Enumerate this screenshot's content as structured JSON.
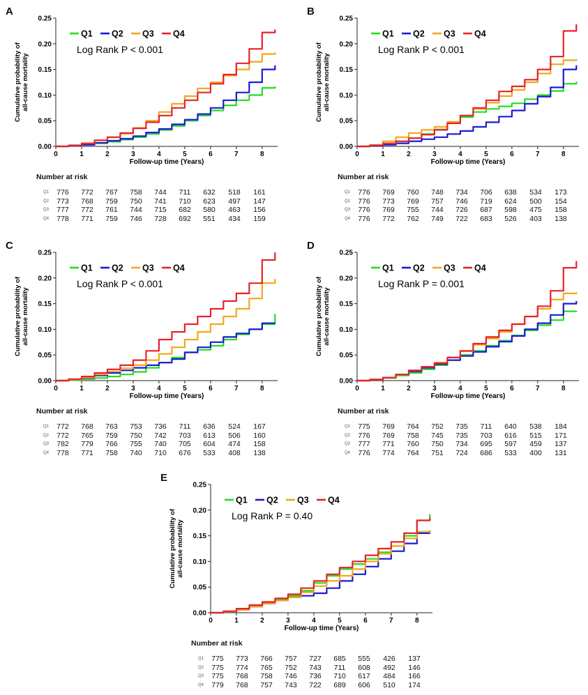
{
  "colors": {
    "Q1": "#22dd22",
    "Q2": "#1a1ad6",
    "Q3": "#f2a71b",
    "Q4": "#e8222a"
  },
  "shared": {
    "xlabel": "Follow-up time (Years)",
    "ylabel_line1": "Cumulative probability of",
    "ylabel_line2": "all-cause mortality",
    "risk_title": "Number at risk",
    "groups": [
      "Q1",
      "Q2",
      "Q3",
      "Q4"
    ]
  },
  "chart_data": [
    {
      "panel": "A",
      "type": "line",
      "logrank": "Log Rank P < 0.001",
      "xlim": [
        0,
        8.6
      ],
      "ylim": [
        0,
        0.25
      ],
      "xticks": [
        0,
        1,
        2,
        3,
        4,
        5,
        6,
        7,
        8
      ],
      "yticks": [
        0,
        0.05,
        0.1,
        0.15,
        0.2,
        0.25
      ],
      "ytick_labels": [
        "0.00",
        "0.05",
        "0.10",
        "0.15",
        "0.20",
        "0.25"
      ],
      "x": [
        0,
        0.5,
        1,
        1.5,
        2,
        2.5,
        3,
        3.5,
        4,
        4.5,
        5,
        5.5,
        6,
        6.5,
        7,
        7.5,
        8,
        8.5
      ],
      "series": [
        {
          "name": "Q1",
          "values": [
            0,
            0.001,
            0.003,
            0.006,
            0.009,
            0.013,
            0.018,
            0.024,
            0.032,
            0.04,
            0.05,
            0.06,
            0.07,
            0.08,
            0.09,
            0.1,
            0.114,
            0.117
          ]
        },
        {
          "name": "Q2",
          "values": [
            0,
            0.001,
            0.003,
            0.007,
            0.011,
            0.015,
            0.02,
            0.027,
            0.034,
            0.043,
            0.052,
            0.063,
            0.075,
            0.09,
            0.105,
            0.125,
            0.15,
            0.158
          ]
        },
        {
          "name": "Q3",
          "values": [
            0,
            0.002,
            0.006,
            0.012,
            0.018,
            0.025,
            0.036,
            0.05,
            0.067,
            0.083,
            0.098,
            0.113,
            0.125,
            0.138,
            0.15,
            0.165,
            0.18,
            0.183
          ]
        },
        {
          "name": "Q4",
          "values": [
            0,
            0.002,
            0.006,
            0.012,
            0.018,
            0.026,
            0.035,
            0.047,
            0.06,
            0.075,
            0.09,
            0.105,
            0.122,
            0.14,
            0.162,
            0.19,
            0.222,
            0.228
          ]
        }
      ],
      "risk": [
        [
          "776",
          "772",
          "767",
          "758",
          "744",
          "711",
          "632",
          "518",
          "161"
        ],
        [
          "773",
          "768",
          "759",
          "750",
          "741",
          "710",
          "623",
          "497",
          "147"
        ],
        [
          "777",
          "772",
          "761",
          "744",
          "715",
          "682",
          "580",
          "463",
          "156"
        ],
        [
          "778",
          "771",
          "759",
          "746",
          "728",
          "692",
          "551",
          "434",
          "159"
        ]
      ]
    },
    {
      "panel": "B",
      "type": "line",
      "logrank": "Log Rank P < 0.001",
      "xlim": [
        0,
        8.6
      ],
      "ylim": [
        0,
        0.25
      ],
      "xticks": [
        0,
        1,
        2,
        3,
        4,
        5,
        6,
        7,
        8
      ],
      "yticks": [
        0,
        0.05,
        0.1,
        0.15,
        0.2,
        0.25
      ],
      "ytick_labels": [
        "0.00",
        "0.05",
        "0.10",
        "0.15",
        "0.20",
        "0.25"
      ],
      "x": [
        0,
        0.5,
        1,
        1.5,
        2,
        2.5,
        3,
        3.5,
        4,
        4.5,
        5,
        5.5,
        6,
        6.5,
        7,
        7.5,
        8,
        8.5
      ],
      "series": [
        {
          "name": "Q1",
          "values": [
            0,
            0.002,
            0.005,
            0.01,
            0.016,
            0.024,
            0.033,
            0.045,
            0.057,
            0.067,
            0.073,
            0.078,
            0.084,
            0.092,
            0.1,
            0.108,
            0.122,
            0.126
          ]
        },
        {
          "name": "Q2",
          "values": [
            0,
            0.001,
            0.003,
            0.006,
            0.01,
            0.014,
            0.018,
            0.024,
            0.03,
            0.038,
            0.047,
            0.058,
            0.07,
            0.083,
            0.097,
            0.115,
            0.15,
            0.158
          ]
        },
        {
          "name": "Q3",
          "values": [
            0,
            0.003,
            0.01,
            0.018,
            0.026,
            0.032,
            0.038,
            0.048,
            0.06,
            0.073,
            0.085,
            0.098,
            0.11,
            0.125,
            0.142,
            0.16,
            0.168,
            0.17
          ]
        },
        {
          "name": "Q4",
          "values": [
            0,
            0.002,
            0.006,
            0.01,
            0.016,
            0.023,
            0.032,
            0.045,
            0.06,
            0.075,
            0.09,
            0.107,
            0.117,
            0.13,
            0.15,
            0.175,
            0.225,
            0.238
          ]
        }
      ],
      "risk": [
        [
          "776",
          "769",
          "760",
          "748",
          "734",
          "706",
          "638",
          "534",
          "173"
        ],
        [
          "776",
          "773",
          "769",
          "757",
          "746",
          "719",
          "624",
          "500",
          "154"
        ],
        [
          "776",
          "769",
          "755",
          "744",
          "726",
          "687",
          "598",
          "475",
          "158"
        ],
        [
          "776",
          "772",
          "762",
          "749",
          "722",
          "683",
          "526",
          "403",
          "138"
        ]
      ]
    },
    {
      "panel": "C",
      "type": "line",
      "logrank": "Log Rank P < 0.001",
      "xlim": [
        0,
        8.6
      ],
      "ylim": [
        0,
        0.25
      ],
      "xticks": [
        0,
        1,
        2,
        3,
        4,
        5,
        6,
        7,
        8
      ],
      "yticks": [
        0,
        0.05,
        0.1,
        0.15,
        0.2,
        0.25
      ],
      "ytick_labels": [
        "0.00",
        "0.05",
        "0.10",
        "0.15",
        "0.20",
        "0.25"
      ],
      "x": [
        0,
        0.5,
        1,
        1.5,
        2,
        2.5,
        3,
        3.5,
        4,
        4.5,
        5,
        5.5,
        6,
        6.5,
        7,
        7.5,
        8,
        8.5
      ],
      "series": [
        {
          "name": "Q1",
          "values": [
            0,
            0.001,
            0.003,
            0.005,
            0.008,
            0.012,
            0.017,
            0.025,
            0.035,
            0.045,
            0.055,
            0.06,
            0.068,
            0.08,
            0.09,
            0.1,
            0.11,
            0.13
          ]
        },
        {
          "name": "Q2",
          "values": [
            0,
            0.002,
            0.005,
            0.01,
            0.015,
            0.02,
            0.025,
            0.03,
            0.035,
            0.042,
            0.055,
            0.065,
            0.075,
            0.085,
            0.092,
            0.1,
            0.112,
            0.112
          ]
        },
        {
          "name": "Q3",
          "values": [
            0,
            0.002,
            0.006,
            0.012,
            0.018,
            0.024,
            0.03,
            0.04,
            0.052,
            0.065,
            0.08,
            0.095,
            0.11,
            0.125,
            0.14,
            0.16,
            0.19,
            0.198
          ]
        },
        {
          "name": "Q4",
          "values": [
            0,
            0.003,
            0.008,
            0.015,
            0.022,
            0.03,
            0.04,
            0.058,
            0.08,
            0.095,
            0.11,
            0.125,
            0.14,
            0.155,
            0.17,
            0.19,
            0.235,
            0.25
          ]
        }
      ],
      "risk": [
        [
          "772",
          "768",
          "763",
          "753",
          "736",
          "711",
          "636",
          "524",
          "167"
        ],
        [
          "772",
          "765",
          "759",
          "750",
          "742",
          "703",
          "613",
          "506",
          "160"
        ],
        [
          "782",
          "779",
          "766",
          "755",
          "740",
          "705",
          "604",
          "474",
          "158"
        ],
        [
          "778",
          "771",
          "758",
          "740",
          "710",
          "676",
          "533",
          "408",
          "138"
        ]
      ]
    },
    {
      "panel": "D",
      "type": "line",
      "logrank": "Log Rank P = 0.001",
      "xlim": [
        0,
        8.6
      ],
      "ylim": [
        0,
        0.25
      ],
      "xticks": [
        0,
        1,
        2,
        3,
        4,
        5,
        6,
        7,
        8
      ],
      "yticks": [
        0,
        0.05,
        0.1,
        0.15,
        0.2,
        0.25
      ],
      "ytick_labels": [
        "0.00",
        "0.05",
        "0.10",
        "0.15",
        "0.20",
        "0.25"
      ],
      "x": [
        0,
        0.5,
        1,
        1.5,
        2,
        2.5,
        3,
        3.5,
        4,
        4.5,
        5,
        5.5,
        6,
        6.5,
        7,
        7.5,
        8,
        8.5
      ],
      "series": [
        {
          "name": "Q1",
          "values": [
            0,
            0.002,
            0.005,
            0.01,
            0.015,
            0.022,
            0.03,
            0.04,
            0.05,
            0.058,
            0.068,
            0.078,
            0.088,
            0.098,
            0.108,
            0.118,
            0.135,
            0.136
          ]
        },
        {
          "name": "Q2",
          "values": [
            0,
            0.002,
            0.006,
            0.012,
            0.018,
            0.025,
            0.032,
            0.04,
            0.048,
            0.056,
            0.066,
            0.076,
            0.087,
            0.1,
            0.112,
            0.128,
            0.15,
            0.155
          ]
        },
        {
          "name": "Q3",
          "values": [
            0,
            0.002,
            0.006,
            0.012,
            0.02,
            0.027,
            0.035,
            0.045,
            0.057,
            0.07,
            0.082,
            0.095,
            0.11,
            0.125,
            0.14,
            0.158,
            0.17,
            0.172
          ]
        },
        {
          "name": "Q4",
          "values": [
            0,
            0.002,
            0.006,
            0.012,
            0.02,
            0.027,
            0.034,
            0.045,
            0.058,
            0.072,
            0.085,
            0.098,
            0.11,
            0.125,
            0.145,
            0.175,
            0.22,
            0.233
          ]
        }
      ],
      "risk": [
        [
          "775",
          "769",
          "764",
          "752",
          "735",
          "711",
          "640",
          "538",
          "184"
        ],
        [
          "776",
          "769",
          "758",
          "745",
          "735",
          "703",
          "616",
          "515",
          "171"
        ],
        [
          "777",
          "771",
          "760",
          "750",
          "734",
          "695",
          "597",
          "459",
          "137"
        ],
        [
          "776",
          "774",
          "764",
          "751",
          "724",
          "686",
          "533",
          "400",
          "131"
        ]
      ]
    },
    {
      "panel": "E",
      "type": "line",
      "logrank": "Log Rank P = 0.40",
      "xlim": [
        0,
        8.6
      ],
      "ylim": [
        0,
        0.25
      ],
      "xticks": [
        0,
        1,
        2,
        3,
        4,
        5,
        6,
        7,
        8
      ],
      "yticks": [
        0,
        0.05,
        0.1,
        0.15,
        0.2,
        0.25
      ],
      "ytick_labels": [
        "0.00",
        "0.05",
        "0.10",
        "0.15",
        "0.20",
        "0.25"
      ],
      "x": [
        0,
        0.5,
        1,
        1.5,
        2,
        2.5,
        3,
        3.5,
        4,
        4.5,
        5,
        5.5,
        6,
        6.5,
        7,
        7.5,
        8,
        8.5
      ],
      "series": [
        {
          "name": "Q1",
          "values": [
            0,
            0.003,
            0.008,
            0.014,
            0.02,
            0.026,
            0.033,
            0.043,
            0.058,
            0.072,
            0.085,
            0.095,
            0.105,
            0.118,
            0.13,
            0.15,
            0.18,
            0.192
          ]
        },
        {
          "name": "Q2",
          "values": [
            0,
            0.002,
            0.006,
            0.012,
            0.018,
            0.024,
            0.03,
            0.033,
            0.038,
            0.048,
            0.062,
            0.075,
            0.09,
            0.105,
            0.12,
            0.135,
            0.155,
            0.16
          ]
        },
        {
          "name": "Q3",
          "values": [
            0,
            0.002,
            0.006,
            0.012,
            0.018,
            0.024,
            0.03,
            0.04,
            0.052,
            0.062,
            0.072,
            0.085,
            0.1,
            0.115,
            0.13,
            0.145,
            0.158,
            0.155
          ]
        },
        {
          "name": "Q4",
          "values": [
            0,
            0.003,
            0.008,
            0.015,
            0.021,
            0.028,
            0.036,
            0.048,
            0.062,
            0.075,
            0.088,
            0.1,
            0.112,
            0.125,
            0.138,
            0.155,
            0.18,
            0.185
          ]
        }
      ],
      "risk": [
        [
          "775",
          "773",
          "766",
          "757",
          "727",
          "685",
          "555",
          "426",
          "137"
        ],
        [
          "775",
          "774",
          "765",
          "752",
          "743",
          "711",
          "608",
          "492",
          "146"
        ],
        [
          "775",
          "768",
          "758",
          "746",
          "736",
          "710",
          "617",
          "484",
          "166"
        ],
        [
          "779",
          "768",
          "757",
          "743",
          "722",
          "689",
          "606",
          "510",
          "174"
        ]
      ]
    }
  ]
}
